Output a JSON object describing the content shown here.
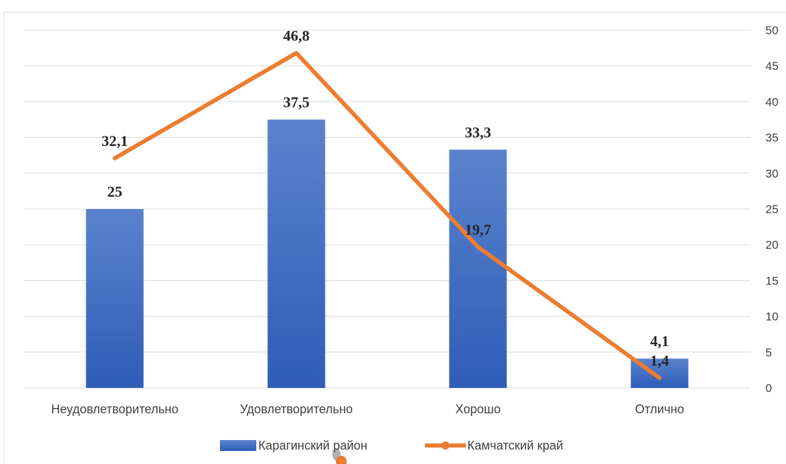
{
  "chart_data": {
    "type": "bar",
    "categories": [
      "Неудовлетворительно",
      "Удовлетворительно",
      "Хорошо",
      "Отлично"
    ],
    "series": [
      {
        "name": "Карагинский район",
        "kind": "bar",
        "values": [
          25,
          37.5,
          33.3,
          4.1
        ],
        "labels": [
          "25",
          "37,5",
          "33,3",
          "4,1"
        ],
        "color": "#4472C4"
      },
      {
        "name": "Камчатский край",
        "kind": "line",
        "values": [
          32.1,
          46.8,
          19.7,
          1.4
        ],
        "labels": [
          "32,1",
          "46,8",
          "19,7",
          "1,4"
        ],
        "color": "#ED7D31"
      }
    ],
    "y_axis": {
      "position": "right",
      "ylim": [
        0,
        50
      ],
      "ticks": [
        "0",
        "5",
        "10",
        "15",
        "20",
        "25",
        "30",
        "35",
        "40",
        "45",
        "50"
      ]
    },
    "grid": true,
    "legend_position": "bottom"
  }
}
